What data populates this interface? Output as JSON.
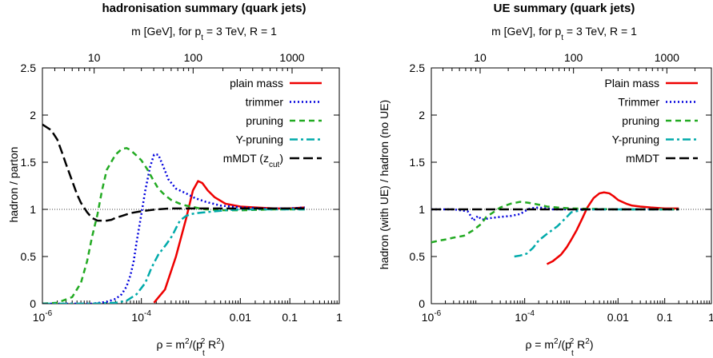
{
  "chart_data": [
    {
      "type": "line",
      "title": "hadronisation summary (quark jets)",
      "top_axis": {
        "label_parts": [
          "m [GeV], for p",
          "t",
          " = 3 TeV, R = 1"
        ],
        "ticks": [
          {
            "v": 10,
            "label": "10"
          },
          {
            "v": 100,
            "label": "100"
          },
          {
            "v": 1000,
            "label": "1000"
          }
        ]
      },
      "xlabel_parts": [
        "ρ = m",
        "2",
        "/(p",
        "t",
        "2",
        " R",
        "2",
        ")"
      ],
      "ylabel": "hadron / parton",
      "x_scale": "log",
      "xlim": [
        1e-06,
        1
      ],
      "ylim": [
        0,
        2.5
      ],
      "x_ticks": [
        {
          "v": 1e-06,
          "base": "10",
          "exp": "-6"
        },
        {
          "v": 0.0001,
          "base": "10",
          "exp": "-4"
        },
        {
          "v": 0.01,
          "label": "0.01"
        },
        {
          "v": 0.1,
          "label": "0.1"
        },
        {
          "v": 1,
          "label": "1"
        }
      ],
      "y_ticks": [
        {
          "v": 0,
          "label": "0"
        },
        {
          "v": 0.5,
          "label": "0.5"
        },
        {
          "v": 1,
          "label": "1"
        },
        {
          "v": 1.5,
          "label": "1.5"
        },
        {
          "v": 2,
          "label": "2"
        },
        {
          "v": 2.5,
          "label": "2.5"
        }
      ],
      "reference_line": 1,
      "legend_position": "top-right",
      "series": [
        {
          "name_parts": [
            "plain mass"
          ],
          "color": "#ee0000",
          "dash": "solid",
          "x": [
            0.00018,
            0.0003,
            0.0005,
            0.0008,
            0.0011,
            0.0014,
            0.0017,
            0.0022,
            0.003,
            0.005,
            0.01,
            0.02,
            0.05,
            0.1,
            0.2
          ],
          "y": [
            0.01,
            0.15,
            0.5,
            0.9,
            1.2,
            1.3,
            1.28,
            1.2,
            1.13,
            1.06,
            1.03,
            1.02,
            1.01,
            1.01,
            1.02
          ]
        },
        {
          "name_parts": [
            "trimmer"
          ],
          "color": "#0000dd",
          "dash": "dot",
          "x": [
            1e-06,
            1e-05,
            2e-05,
            3e-05,
            4e-05,
            5e-05,
            6e-05,
            7e-05,
            8e-05,
            0.0001,
            0.00012,
            0.00015,
            0.00018,
            0.00022,
            0.00028,
            0.00035,
            0.0005,
            0.0008,
            0.0012,
            0.002,
            0.004,
            0.01,
            0.03,
            0.1,
            0.2
          ],
          "y": [
            0,
            0,
            0.02,
            0.05,
            0.1,
            0.18,
            0.3,
            0.45,
            0.65,
            0.95,
            1.2,
            1.45,
            1.58,
            1.58,
            1.45,
            1.32,
            1.22,
            1.17,
            1.12,
            1.08,
            1.04,
            1.02,
            1.01,
            1.01,
            1.02
          ]
        },
        {
          "name_parts": [
            "pruning"
          ],
          "color": "#22aa22",
          "dash": "dash",
          "x": [
            1e-06,
            2e-06,
            4e-06,
            6e-06,
            8e-06,
            1e-05,
            1.3e-05,
            1.6e-05,
            2e-05,
            3e-05,
            4e-05,
            5e-05,
            6e-05,
            8e-05,
            0.0001,
            0.00013,
            0.00017,
            0.00022,
            0.0003,
            0.0004,
            0.0006,
            0.0008,
            0.001,
            0.0015,
            0.002,
            0.005,
            0.01,
            0.05,
            0.1,
            0.2
          ],
          "y": [
            0,
            0.01,
            0.07,
            0.22,
            0.45,
            0.7,
            0.95,
            1.2,
            1.42,
            1.58,
            1.64,
            1.65,
            1.63,
            1.57,
            1.52,
            1.43,
            1.32,
            1.22,
            1.15,
            1.1,
            1.06,
            1.04,
            1.03,
            1.01,
            1.0,
            0.99,
            0.99,
            1.0,
            1.0,
            1.0
          ]
        },
        {
          "name_parts": [
            "Y-pruning"
          ],
          "color": "#00aaaa",
          "dash": "dashdot",
          "x": [
            1e-06,
            1e-05,
            3e-05,
            5e-05,
            8e-05,
            0.00012,
            0.00016,
            0.00022,
            0.00032,
            0.00042,
            0.0005,
            0.0006,
            0.0008,
            0.001,
            0.0013,
            0.002,
            0.005,
            0.01,
            0.05,
            0.1,
            0.2
          ],
          "y": [
            0,
            0,
            0.01,
            0.03,
            0.1,
            0.22,
            0.38,
            0.52,
            0.63,
            0.72,
            0.8,
            0.88,
            0.93,
            0.95,
            0.96,
            0.97,
            0.99,
            1.0,
            1.0,
            1.0,
            1.0
          ]
        },
        {
          "name_parts": [
            "mMDT (z",
            "cut",
            ")"
          ],
          "color": "#000000",
          "dash": "longdash",
          "x": [
            1e-06,
            1.5e-06,
            2e-06,
            2.5e-06,
            3e-06,
            4e-06,
            5e-06,
            6e-06,
            8e-06,
            1e-05,
            1.3e-05,
            1.6e-05,
            2e-05,
            2.5e-05,
            3e-05,
            4e-05,
            6e-05,
            0.0001,
            0.0002,
            0.0004,
            0.001,
            0.003,
            0.01,
            0.05,
            0.1,
            0.2
          ],
          "y": [
            1.9,
            1.84,
            1.74,
            1.6,
            1.48,
            1.3,
            1.16,
            1.07,
            0.97,
            0.91,
            0.88,
            0.88,
            0.88,
            0.89,
            0.91,
            0.93,
            0.96,
            0.98,
            1.0,
            1.01,
            1.01,
            1.01,
            1.01,
            1.01,
            1.01,
            1.01
          ]
        }
      ]
    },
    {
      "type": "line",
      "title": "UE summary (quark jets)",
      "top_axis": {
        "label_parts": [
          "m [GeV], for p",
          "t",
          " = 3 TeV, R = 1"
        ],
        "ticks": [
          {
            "v": 10,
            "label": "10"
          },
          {
            "v": 100,
            "label": "100"
          },
          {
            "v": 1000,
            "label": "1000"
          }
        ]
      },
      "xlabel_parts": [
        "ρ = m",
        "2",
        "/(p",
        "t",
        "2",
        " R",
        "2",
        ")"
      ],
      "ylabel": "hadron (with UE) / hadron (no UE)",
      "x_scale": "log",
      "xlim": [
        1e-06,
        1
      ],
      "ylim": [
        0,
        2.5
      ],
      "x_ticks": [
        {
          "v": 1e-06,
          "base": "10",
          "exp": "-6"
        },
        {
          "v": 0.0001,
          "base": "10",
          "exp": "-4"
        },
        {
          "v": 0.01,
          "label": "0.01"
        },
        {
          "v": 0.1,
          "label": "0.1"
        },
        {
          "v": 1,
          "label": "1"
        }
      ],
      "y_ticks": [
        {
          "v": 0,
          "label": "0"
        },
        {
          "v": 0.5,
          "label": "0.5"
        },
        {
          "v": 1,
          "label": "1"
        },
        {
          "v": 1.5,
          "label": "1.5"
        },
        {
          "v": 2,
          "label": "2"
        },
        {
          "v": 2.5,
          "label": "2.5"
        }
      ],
      "reference_line": 1,
      "legend_position": "top-right",
      "series": [
        {
          "name_parts": [
            "Plain mass"
          ],
          "color": "#ee0000",
          "dash": "solid",
          "x": [
            0.0003,
            0.0004,
            0.0006,
            0.0008,
            0.001,
            0.0013,
            0.0017,
            0.0022,
            0.003,
            0.004,
            0.005,
            0.0065,
            0.008,
            0.01,
            0.015,
            0.02,
            0.03,
            0.05,
            0.1,
            0.2
          ],
          "y": [
            0.42,
            0.45,
            0.52,
            0.6,
            0.68,
            0.78,
            0.9,
            1.02,
            1.12,
            1.17,
            1.18,
            1.17,
            1.14,
            1.1,
            1.06,
            1.04,
            1.03,
            1.02,
            1.01,
            1.01
          ]
        },
        {
          "name_parts": [
            "Trimmer"
          ],
          "color": "#0000dd",
          "dash": "dot",
          "x": [
            1e-06,
            3e-06,
            6e-06,
            7e-06,
            8e-06,
            9e-06,
            1e-05,
            1.2e-05,
            1.5e-05,
            2e-05,
            3e-05,
            5e-05,
            8e-05,
            0.0001,
            0.00013,
            0.0002,
            0.0003,
            0.0004,
            0.0005,
            0.001,
            0.01,
            0.1,
            0.2
          ],
          "y": [
            1,
            1,
            0.98,
            0.93,
            0.88,
            0.91,
            0.93,
            0.89,
            0.9,
            0.91,
            0.92,
            0.93,
            0.95,
            0.98,
            1.01,
            1.02,
            1.01,
            1.0,
            1.0,
            1.0,
            1.0,
            1.0,
            1.0
          ]
        },
        {
          "name_parts": [
            "pruning"
          ],
          "color": "#22aa22",
          "dash": "dash",
          "x": [
            1e-06,
            1.5e-06,
            2e-06,
            3e-06,
            5e-06,
            8e-06,
            1.2e-05,
            1.5e-05,
            2e-05,
            3e-05,
            5e-05,
            8e-05,
            0.00012,
            0.0002,
            0.0003,
            0.0005,
            0.001,
            0.01,
            0.1,
            0.2
          ],
          "y": [
            0.65,
            0.67,
            0.68,
            0.7,
            0.72,
            0.78,
            0.85,
            0.92,
            0.96,
            1.02,
            1.06,
            1.08,
            1.07,
            1.05,
            1.03,
            1.02,
            1.01,
            1.0,
            1.0,
            1.0
          ]
        },
        {
          "name_parts": [
            "Y-pruning"
          ],
          "color": "#00aaaa",
          "dash": "dashdot",
          "x": [
            6e-05,
            8e-05,
            0.00011,
            0.00015,
            0.0002,
            0.0003,
            0.0005,
            0.0008,
            0.001,
            0.002,
            0.005,
            0.01,
            0.05,
            0.1,
            0.2
          ],
          "y": [
            0.5,
            0.51,
            0.53,
            0.59,
            0.67,
            0.74,
            0.82,
            0.92,
            0.97,
            1.0,
            1.0,
            1.0,
            1.0,
            1.0,
            1.0
          ]
        },
        {
          "name_parts": [
            "mMDT"
          ],
          "color": "#000000",
          "dash": "longdash",
          "x": [
            1e-06,
            1e-05,
            0.0001,
            0.001,
            0.01,
            0.1,
            0.2
          ],
          "y": [
            1,
            1,
            1,
            1,
            1,
            1,
            1
          ]
        }
      ]
    }
  ]
}
